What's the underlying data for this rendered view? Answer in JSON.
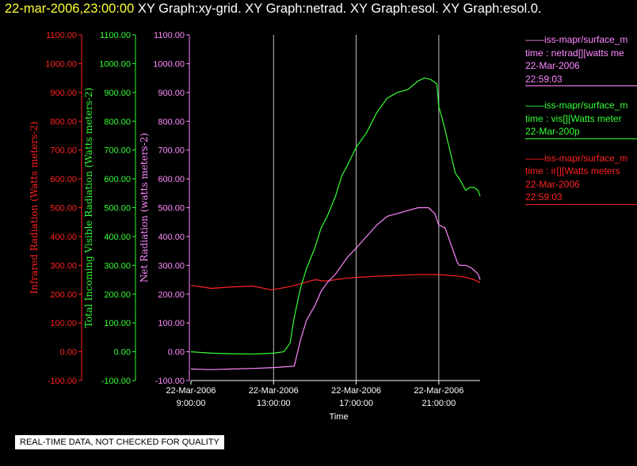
{
  "header": {
    "datetime": "22-mar-2006,23:00:00",
    "titles": "  XY Graph:xy-grid.  XY Graph:netrad.  XY Graph:esol.  XY Graph:esol.0."
  },
  "legend": [
    {
      "color": "#ff88ff",
      "lines": [
        "——iss-mapr/surface_m",
        "time : netrad[][watts me",
        "22-Mar-2006",
        "22:59:03"
      ]
    },
    {
      "color": "#33ff33",
      "lines": [
        "——iss-mapr/surface_m",
        "time : vis[][Watts meter",
        "22-Mar-200p"
      ]
    },
    {
      "color": "#ff2222",
      "lines": [
        "——iss-mapr/surface_m",
        "time : ir[][Watts meters",
        "22-Mar-2006",
        "22:59:03"
      ]
    }
  ],
  "notice": "REAL-TIME DATA, NOT CHECKED FOR QUALITY",
  "chart_data": {
    "type": "line",
    "xlabel": "Time",
    "x_ticks": [
      {
        "hour": 9,
        "line1": "22-Mar-2006",
        "line2": "9:00:00"
      },
      {
        "hour": 13,
        "line1": "22-Mar-2006",
        "line2": "13:00:00"
      },
      {
        "hour": 17,
        "line1": "22-Mar-2006",
        "line2": "17:00:00"
      },
      {
        "hour": 21,
        "line1": "22-Mar-2006",
        "line2": "21:00:00"
      }
    ],
    "xlim_hours": [
      9,
      23
    ],
    "grid": "vertical lines at tick times",
    "y_axes": [
      {
        "name": "ir",
        "label": "Infrared Radiation (Watts meters-2)",
        "color": "#ff2222",
        "ylim": [
          -100,
          1100
        ],
        "ticks": [
          "-100.00",
          "0.00",
          "100.00",
          "200.00",
          "300.00",
          "400.00",
          "500.00",
          "600.00",
          "700.00",
          "800.00",
          "900.00",
          "1000.00",
          "1100.00"
        ]
      },
      {
        "name": "vis",
        "label": "Total Incoming Visible Radiation (Watts meters-2)",
        "color": "#33ff33",
        "ylim": [
          -100,
          1100
        ],
        "ticks": [
          "-100.00",
          "0.00",
          "100.00",
          "200.00",
          "300.00",
          "400.00",
          "500.00",
          "600.00",
          "700.00",
          "800.00",
          "900.00",
          "1000.00",
          "1100.00"
        ]
      },
      {
        "name": "netrad",
        "label": "Net Radiation (watts meters-2)",
        "color": "#ff88ff",
        "ylim": [
          -100,
          1100
        ],
        "ticks": [
          "-100.00",
          "0.00",
          "100.00",
          "200.00",
          "300.00",
          "400.00",
          "500.00",
          "600.00",
          "700.00",
          "800.00",
          "900.00",
          "1000.00",
          "1100.00"
        ]
      }
    ],
    "series": [
      {
        "name": "ir",
        "color": "#ff2222",
        "x": [
          9.0,
          10.0,
          11.0,
          12.0,
          12.9,
          13.5,
          14.0,
          14.5,
          15.0,
          15.5,
          16.0,
          16.5,
          17.0,
          18.0,
          19.0,
          20.0,
          21.0,
          22.0,
          22.3,
          22.7,
          23.0
        ],
        "y": [
          230,
          220,
          225,
          228,
          215,
          222,
          230,
          240,
          250,
          245,
          250,
          255,
          258,
          262,
          265,
          268,
          268,
          262,
          258,
          250,
          240
        ]
      },
      {
        "name": "vis",
        "color": "#33ff33",
        "x": [
          9.0,
          10.0,
          11.0,
          12.0,
          13.0,
          13.5,
          13.8,
          14.0,
          14.3,
          14.6,
          15.0,
          15.3,
          15.6,
          16.0,
          16.3,
          16.6,
          17.0,
          17.5,
          18.0,
          18.5,
          19.0,
          19.5,
          20.0,
          20.3,
          20.6,
          20.9,
          21.0,
          21.2,
          21.4,
          21.6,
          21.8,
          22.0,
          22.3,
          22.5,
          22.7,
          22.9,
          23.0
        ],
        "y": [
          0,
          -5,
          -7,
          -8,
          -5,
          0,
          30,
          120,
          220,
          290,
          360,
          430,
          470,
          540,
          610,
          650,
          710,
          760,
          830,
          880,
          900,
          910,
          940,
          950,
          945,
          930,
          850,
          800,
          740,
          680,
          620,
          600,
          560,
          570,
          570,
          560,
          540
        ]
      },
      {
        "name": "netrad",
        "color": "#ff88ff",
        "x": [
          9.0,
          10.0,
          11.0,
          12.0,
          13.0,
          14.0,
          14.3,
          14.6,
          15.0,
          15.3,
          15.6,
          16.0,
          16.3,
          16.6,
          17.0,
          17.5,
          18.0,
          18.5,
          19.0,
          19.5,
          20.0,
          20.5,
          20.8,
          21.0,
          21.3,
          21.6,
          21.9,
          22.0,
          22.3,
          22.6,
          22.9,
          23.0
        ],
        "y": [
          -60,
          -62,
          -60,
          -58,
          -55,
          -50,
          40,
          110,
          160,
          210,
          240,
          270,
          300,
          330,
          360,
          400,
          440,
          470,
          480,
          490,
          500,
          500,
          480,
          440,
          430,
          370,
          310,
          300,
          300,
          290,
          270,
          250
        ]
      }
    ]
  }
}
